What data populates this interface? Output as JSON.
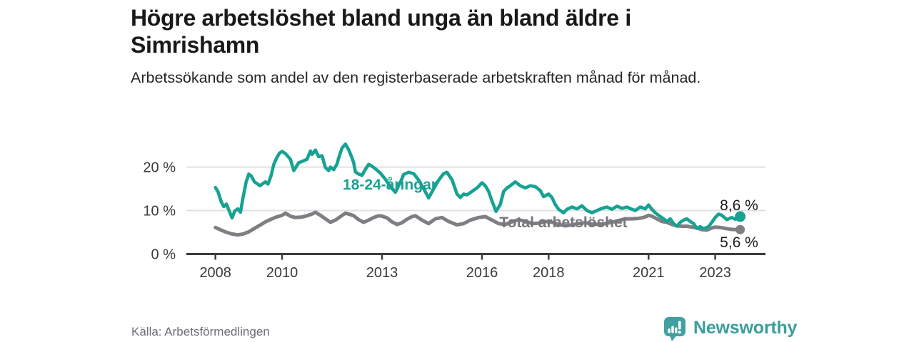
{
  "header": {
    "title": "Högre arbetslöshet bland unga än bland äldre i Simrishamn",
    "subtitle": "Arbetssökande som andel av den registerbaserade arbetskraften månad för månad."
  },
  "footer": {
    "source": "Källa: Arbetsförmedlingen",
    "brand": "Newsworthy"
  },
  "colors": {
    "young_line": "#17a293",
    "total_line": "#7e7e83",
    "grid": "#e0e0e0",
    "axis": "#3c3c3c",
    "tick_label": "#3a3a3a",
    "end_label": "#1c1c1c",
    "title_text": "#191919",
    "source_text": "#6c6c75",
    "brand_teal": "#41a0a0"
  },
  "chart_data": {
    "type": "line",
    "unit": "%",
    "title": "Högre arbetslöshet bland unga än bland äldre i Simrishamn",
    "subtitle": "Arbetssökande som andel av den registerbaserade arbetskraften månad för månad.",
    "grid": "horizontal-only",
    "x_ticks": [
      2008,
      2010,
      2013,
      2016,
      2018,
      2021,
      2023
    ],
    "y_ticks": [
      {
        "value": 0,
        "label": "0 %"
      },
      {
        "value": 10,
        "label": "10 %"
      },
      {
        "value": 20,
        "label": "20 %"
      }
    ],
    "ylim": [
      0,
      27
    ],
    "x_range_years": [
      2008.0,
      2023.75
    ],
    "series": [
      {
        "id": "total",
        "name": "Total arbetslöshet",
        "end_label": "5,6 %",
        "last_value": 5.6,
        "color": "#7e7e83",
        "label_color": "#76767b",
        "points": [
          [
            2008.0,
            6.1
          ],
          [
            2008.17,
            5.5
          ],
          [
            2008.33,
            5.0
          ],
          [
            2008.5,
            4.6
          ],
          [
            2008.67,
            4.4
          ],
          [
            2008.83,
            4.6
          ],
          [
            2009.0,
            5.1
          ],
          [
            2009.17,
            5.9
          ],
          [
            2009.33,
            6.6
          ],
          [
            2009.5,
            7.4
          ],
          [
            2009.67,
            8.0
          ],
          [
            2009.83,
            8.5
          ],
          [
            2010.0,
            8.9
          ],
          [
            2010.1,
            9.4
          ],
          [
            2010.25,
            8.7
          ],
          [
            2010.4,
            8.4
          ],
          [
            2010.6,
            8.5
          ],
          [
            2010.75,
            8.8
          ],
          [
            2010.9,
            9.2
          ],
          [
            2011.0,
            9.6
          ],
          [
            2011.15,
            8.9
          ],
          [
            2011.3,
            8.1
          ],
          [
            2011.45,
            7.3
          ],
          [
            2011.6,
            7.8
          ],
          [
            2011.75,
            8.6
          ],
          [
            2011.9,
            9.4
          ],
          [
            2012.0,
            9.2
          ],
          [
            2012.15,
            8.8
          ],
          [
            2012.3,
            7.9
          ],
          [
            2012.45,
            7.3
          ],
          [
            2012.6,
            7.8
          ],
          [
            2012.75,
            8.4
          ],
          [
            2012.9,
            8.8
          ],
          [
            2013.0,
            8.7
          ],
          [
            2013.15,
            8.3
          ],
          [
            2013.3,
            7.4
          ],
          [
            2013.45,
            6.8
          ],
          [
            2013.6,
            7.2
          ],
          [
            2013.75,
            8.0
          ],
          [
            2013.9,
            8.6
          ],
          [
            2014.0,
            8.8
          ],
          [
            2014.2,
            7.8
          ],
          [
            2014.4,
            7.0
          ],
          [
            2014.6,
            8.1
          ],
          [
            2014.8,
            8.4
          ],
          [
            2015.0,
            7.5
          ],
          [
            2015.25,
            6.7
          ],
          [
            2015.45,
            7.0
          ],
          [
            2015.65,
            7.8
          ],
          [
            2015.9,
            8.4
          ],
          [
            2016.1,
            8.6
          ],
          [
            2016.3,
            7.8
          ],
          [
            2016.5,
            7.0
          ],
          [
            2016.7,
            6.8
          ],
          [
            2016.9,
            7.4
          ],
          [
            2017.1,
            7.9
          ],
          [
            2017.3,
            7.5
          ],
          [
            2017.5,
            7.0
          ],
          [
            2017.7,
            7.1
          ],
          [
            2017.9,
            7.5
          ],
          [
            2018.1,
            7.3
          ],
          [
            2018.3,
            6.8
          ],
          [
            2018.5,
            6.5
          ],
          [
            2018.7,
            6.7
          ],
          [
            2018.9,
            7.0
          ],
          [
            2019.1,
            7.2
          ],
          [
            2019.3,
            6.9
          ],
          [
            2019.5,
            6.8
          ],
          [
            2019.7,
            7.0
          ],
          [
            2019.9,
            7.3
          ],
          [
            2020.1,
            7.7
          ],
          [
            2020.3,
            8.1
          ],
          [
            2020.5,
            8.1
          ],
          [
            2020.7,
            8.2
          ],
          [
            2020.85,
            8.4
          ],
          [
            2021.0,
            8.9
          ],
          [
            2021.1,
            8.7
          ],
          [
            2021.25,
            8.1
          ],
          [
            2021.4,
            7.5
          ],
          [
            2021.55,
            7.3
          ],
          [
            2021.7,
            6.8
          ],
          [
            2021.85,
            6.5
          ],
          [
            2022.0,
            6.4
          ],
          [
            2022.15,
            6.4
          ],
          [
            2022.3,
            6.2
          ],
          [
            2022.45,
            6.0
          ],
          [
            2022.6,
            5.6
          ],
          [
            2022.75,
            5.5
          ],
          [
            2022.9,
            6.0
          ],
          [
            2023.0,
            6.2
          ],
          [
            2023.15,
            6.1
          ],
          [
            2023.3,
            5.9
          ],
          [
            2023.45,
            5.7
          ],
          [
            2023.6,
            5.6
          ],
          [
            2023.75,
            5.6
          ]
        ]
      },
      {
        "id": "young",
        "name": "18-24-åringar",
        "end_label": "8,6 %",
        "last_value": 8.6,
        "color": "#17a293",
        "label_color": "#17a293",
        "points": [
          [
            2008.0,
            15.3
          ],
          [
            2008.08,
            14.3
          ],
          [
            2008.17,
            12.1
          ],
          [
            2008.25,
            10.9
          ],
          [
            2008.33,
            11.5
          ],
          [
            2008.42,
            9.8
          ],
          [
            2008.5,
            8.3
          ],
          [
            2008.58,
            9.9
          ],
          [
            2008.67,
            10.4
          ],
          [
            2008.75,
            9.6
          ],
          [
            2008.83,
            13.0
          ],
          [
            2008.92,
            16.5
          ],
          [
            2009.0,
            18.4
          ],
          [
            2009.08,
            17.9
          ],
          [
            2009.17,
            16.6
          ],
          [
            2009.25,
            16.2
          ],
          [
            2009.33,
            15.7
          ],
          [
            2009.42,
            16.2
          ],
          [
            2009.5,
            16.6
          ],
          [
            2009.58,
            16.1
          ],
          [
            2009.67,
            18.0
          ],
          [
            2009.75,
            20.6
          ],
          [
            2009.83,
            22.0
          ],
          [
            2009.92,
            23.2
          ],
          [
            2010.0,
            23.6
          ],
          [
            2010.1,
            23.1
          ],
          [
            2010.25,
            21.8
          ],
          [
            2010.35,
            19.2
          ],
          [
            2010.5,
            21.0
          ],
          [
            2010.6,
            21.3
          ],
          [
            2010.75,
            21.8
          ],
          [
            2010.85,
            23.7
          ],
          [
            2010.9,
            22.9
          ],
          [
            2011.0,
            23.9
          ],
          [
            2011.1,
            22.4
          ],
          [
            2011.2,
            22.6
          ],
          [
            2011.3,
            19.9
          ],
          [
            2011.4,
            19.2
          ],
          [
            2011.45,
            20.0
          ],
          [
            2011.55,
            19.4
          ],
          [
            2011.65,
            20.7
          ],
          [
            2011.7,
            22.1
          ],
          [
            2011.8,
            24.4
          ],
          [
            2011.9,
            25.3
          ],
          [
            2012.0,
            24.0
          ],
          [
            2012.1,
            22.1
          ],
          [
            2012.15,
            21.0
          ],
          [
            2012.2,
            18.9
          ],
          [
            2012.3,
            18.4
          ],
          [
            2012.4,
            18.1
          ],
          [
            2012.5,
            19.5
          ],
          [
            2012.6,
            20.6
          ],
          [
            2012.7,
            20.2
          ],
          [
            2012.8,
            19.6
          ],
          [
            2012.95,
            18.6
          ],
          [
            2013.1,
            17.2
          ],
          [
            2013.25,
            15.5
          ],
          [
            2013.4,
            14.2
          ],
          [
            2013.55,
            16.5
          ],
          [
            2013.65,
            18.3
          ],
          [
            2013.8,
            18.8
          ],
          [
            2013.95,
            18.5
          ],
          [
            2014.1,
            17.0
          ],
          [
            2014.25,
            15.0
          ],
          [
            2014.4,
            12.9
          ],
          [
            2014.55,
            15.0
          ],
          [
            2014.7,
            17.0
          ],
          [
            2014.85,
            18.5
          ],
          [
            2014.95,
            18.8
          ],
          [
            2015.1,
            17.1
          ],
          [
            2015.25,
            13.8
          ],
          [
            2015.35,
            13.0
          ],
          [
            2015.45,
            13.8
          ],
          [
            2015.55,
            13.6
          ],
          [
            2015.7,
            14.4
          ],
          [
            2015.85,
            15.2
          ],
          [
            2016.0,
            16.4
          ],
          [
            2016.1,
            15.7
          ],
          [
            2016.2,
            14.4
          ],
          [
            2016.3,
            12.2
          ],
          [
            2016.42,
            9.8
          ],
          [
            2016.55,
            11.4
          ],
          [
            2016.65,
            14.4
          ],
          [
            2016.75,
            15.2
          ],
          [
            2016.85,
            15.7
          ],
          [
            2017.0,
            16.6
          ],
          [
            2017.15,
            15.7
          ],
          [
            2017.3,
            15.2
          ],
          [
            2017.45,
            15.7
          ],
          [
            2017.6,
            15.5
          ],
          [
            2017.75,
            14.6
          ],
          [
            2017.85,
            13.2
          ],
          [
            2018.0,
            13.8
          ],
          [
            2018.1,
            13.0
          ],
          [
            2018.2,
            11.4
          ],
          [
            2018.3,
            10.3
          ],
          [
            2018.45,
            9.5
          ],
          [
            2018.55,
            10.3
          ],
          [
            2018.7,
            10.8
          ],
          [
            2018.85,
            10.4
          ],
          [
            2019.0,
            11.1
          ],
          [
            2019.15,
            10.0
          ],
          [
            2019.3,
            9.5
          ],
          [
            2019.45,
            10.0
          ],
          [
            2019.6,
            10.5
          ],
          [
            2019.75,
            10.8
          ],
          [
            2019.9,
            10.3
          ],
          [
            2020.05,
            11.0
          ],
          [
            2020.2,
            10.5
          ],
          [
            2020.35,
            10.8
          ],
          [
            2020.5,
            10.3
          ],
          [
            2020.6,
            10.0
          ],
          [
            2020.75,
            10.8
          ],
          [
            2020.9,
            10.4
          ],
          [
            2021.0,
            11.3
          ],
          [
            2021.1,
            10.3
          ],
          [
            2021.2,
            9.5
          ],
          [
            2021.3,
            8.9
          ],
          [
            2021.45,
            8.1
          ],
          [
            2021.55,
            7.5
          ],
          [
            2021.65,
            8.1
          ],
          [
            2021.75,
            7.0
          ],
          [
            2021.85,
            6.4
          ],
          [
            2021.95,
            7.3
          ],
          [
            2022.05,
            7.8
          ],
          [
            2022.15,
            8.1
          ],
          [
            2022.25,
            7.5
          ],
          [
            2022.35,
            7.0
          ],
          [
            2022.45,
            5.9
          ],
          [
            2022.55,
            6.3
          ],
          [
            2022.65,
            5.8
          ],
          [
            2022.8,
            6.3
          ],
          [
            2022.9,
            7.3
          ],
          [
            2023.0,
            8.4
          ],
          [
            2023.1,
            9.2
          ],
          [
            2023.2,
            8.9
          ],
          [
            2023.35,
            7.9
          ],
          [
            2023.5,
            8.4
          ],
          [
            2023.6,
            8.0
          ],
          [
            2023.75,
            8.6
          ]
        ]
      }
    ]
  }
}
